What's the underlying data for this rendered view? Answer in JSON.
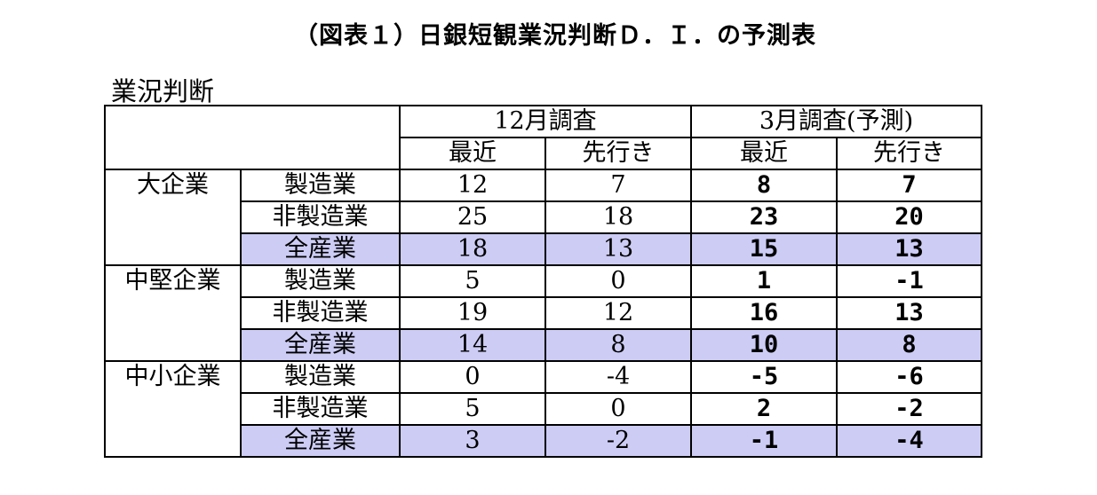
{
  "title": "（図表１）日銀短観業況判断Ｄ．Ｉ．の予測表",
  "section_label": "業況判断",
  "header": {
    "dec_survey": "12月調査",
    "mar_survey": "3月調査(予測)",
    "recent": "最近",
    "forward": "先行き"
  },
  "groups": [
    {
      "name": "大企業",
      "rows": [
        {
          "industry": "製造業",
          "dec_recent": "12",
          "dec_forward": "7",
          "mar_recent": "8",
          "mar_forward": "7"
        },
        {
          "industry": "非製造業",
          "dec_recent": "25",
          "dec_forward": "18",
          "mar_recent": "23",
          "mar_forward": "20"
        },
        {
          "industry": "全産業",
          "dec_recent": "18",
          "dec_forward": "13",
          "mar_recent": "15",
          "mar_forward": "13"
        }
      ]
    },
    {
      "name": "中堅企業",
      "rows": [
        {
          "industry": "製造業",
          "dec_recent": "5",
          "dec_forward": "0",
          "mar_recent": "1",
          "mar_forward": "-1"
        },
        {
          "industry": "非製造業",
          "dec_recent": "19",
          "dec_forward": "12",
          "mar_recent": "16",
          "mar_forward": "13"
        },
        {
          "industry": "全産業",
          "dec_recent": "14",
          "dec_forward": "8",
          "mar_recent": "10",
          "mar_forward": "8"
        }
      ]
    },
    {
      "name": "中小企業",
      "rows": [
        {
          "industry": "製造業",
          "dec_recent": "0",
          "dec_forward": "-4",
          "mar_recent": "-5",
          "mar_forward": "-6"
        },
        {
          "industry": "非製造業",
          "dec_recent": "5",
          "dec_forward": "0",
          "mar_recent": "2",
          "mar_forward": "-2"
        },
        {
          "industry": "全産業",
          "dec_recent": "3",
          "dec_forward": "-2",
          "mar_recent": "-1",
          "mar_forward": "-4"
        }
      ]
    }
  ],
  "colors": {
    "total_row_fill": "#ccccf5"
  }
}
